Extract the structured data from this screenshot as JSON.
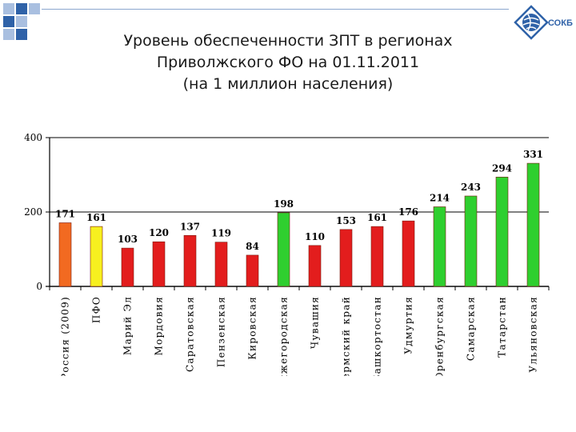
{
  "header": {
    "title_line1": "Уровень обеспеченности ЗПТ в регионах",
    "title_line2": "Приволжского ФО на 01.11.2011",
    "title_line3": "(на 1 миллион населения)",
    "logo_text": "СОКБ"
  },
  "colors": {
    "accent_blue": "#2f62a8",
    "deco_light": "#a9bfe0",
    "orange": "#f26a21",
    "yellow": "#f7f01f",
    "red": "#e31d1d",
    "green": "#2fcf2f"
  },
  "chart_data": {
    "type": "bar",
    "title": "",
    "xlabel": "",
    "ylabel": "",
    "ylim": [
      0,
      400
    ],
    "yticks": [
      0,
      200,
      400
    ],
    "grid": false,
    "categories": [
      "Россия (2009)",
      "ПФО",
      "Марий Эл",
      "Мордовия",
      "Саратовская",
      "Пензенская",
      "Кировская",
      "Нижегородская",
      "Чувашия",
      "Пермский край",
      "Башкортостан",
      "Удмуртия",
      "Оренбургская",
      "Самарская",
      "Татарстан",
      "Ульяновская"
    ],
    "values": [
      171,
      161,
      103,
      120,
      137,
      119,
      84,
      198,
      110,
      153,
      161,
      176,
      214,
      243,
      294,
      331
    ],
    "bar_colors": [
      "orange",
      "yellow",
      "red",
      "red",
      "red",
      "red",
      "red",
      "green",
      "red",
      "red",
      "red",
      "red",
      "green",
      "green",
      "green",
      "green"
    ]
  }
}
